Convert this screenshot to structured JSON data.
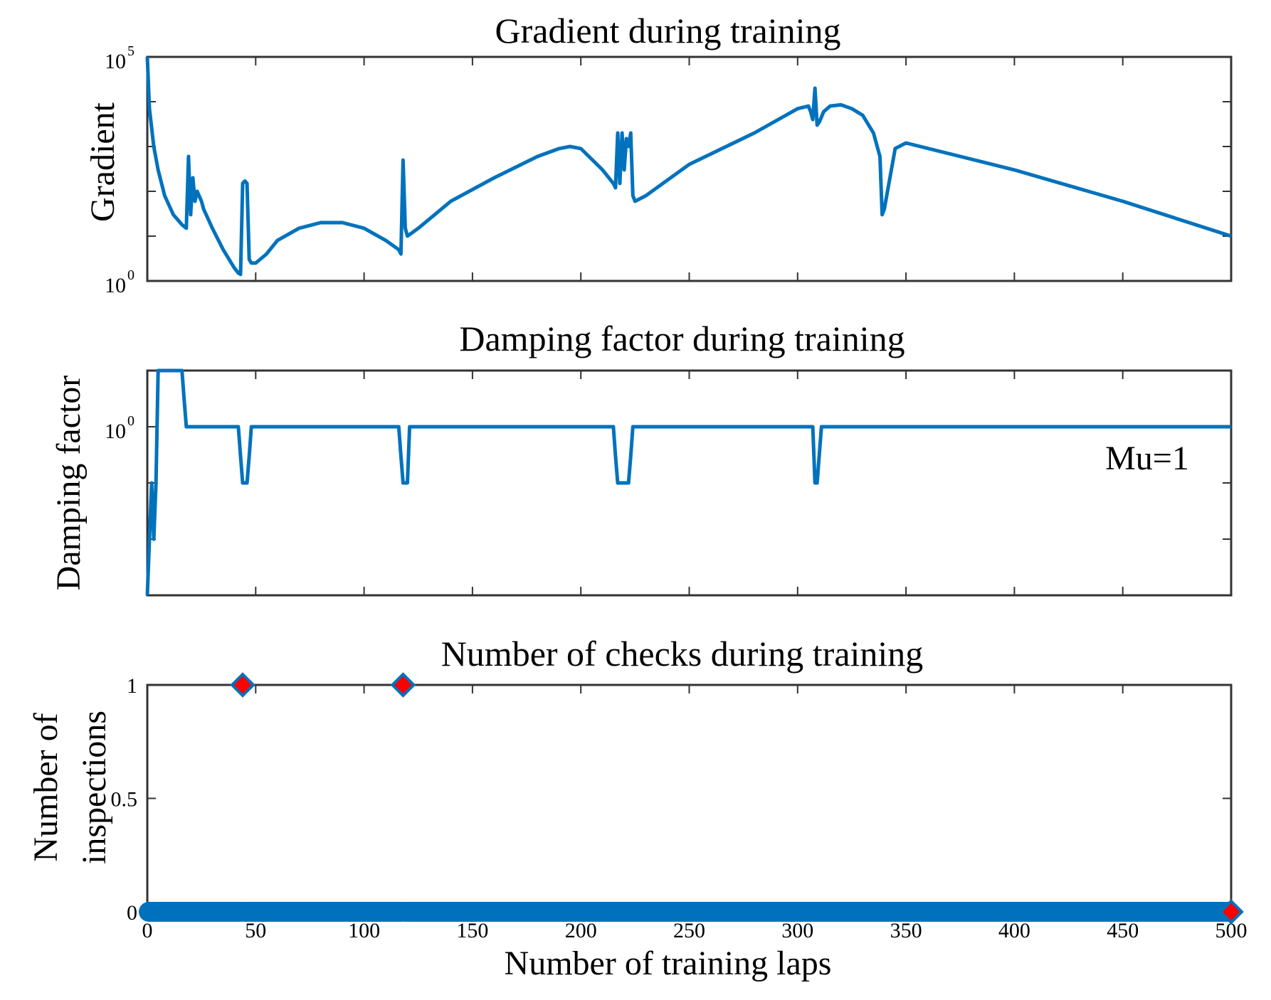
{
  "colors": {
    "line": "#0072BD",
    "marker_fill": "#FF0000",
    "axes": "#333333",
    "background": "#FFFFFF"
  },
  "chart_data": [
    {
      "type": "line",
      "title": "Gradient during training",
      "xlabel": "",
      "ylabel": "Gradient",
      "yscale": "log",
      "xlim": [
        0,
        500
      ],
      "ylim": [
        1,
        100000
      ],
      "yticks": [
        1,
        100000
      ],
      "ytick_labels": [
        {
          "base": "10",
          "exp": "0"
        },
        {
          "base": "10",
          "exp": "5"
        }
      ],
      "xtick_labels_shown": false,
      "grid": false,
      "series": [
        {
          "name": "",
          "x": [
            0,
            1,
            3,
            5,
            8,
            12,
            16,
            18,
            19,
            20,
            21,
            22,
            23,
            25,
            26,
            30,
            35,
            40,
            42,
            43,
            44,
            45,
            46,
            47,
            48,
            50,
            55,
            60,
            70,
            80,
            90,
            100,
            110,
            116,
            117,
            118,
            119,
            120,
            125,
            140,
            160,
            180,
            190,
            195,
            200,
            210,
            215,
            216,
            217,
            218,
            219,
            220,
            221,
            222,
            223,
            224,
            225,
            230,
            250,
            280,
            300,
            305,
            306,
            307,
            308,
            309,
            310,
            312,
            315,
            320,
            325,
            330,
            335,
            338,
            339,
            340,
            345,
            350,
            400,
            450,
            500
          ],
          "y": [
            100000,
            7000,
            1000,
            300,
            80,
            30,
            18,
            15,
            600,
            30,
            200,
            60,
            100,
            60,
            40,
            15,
            5,
            2,
            1.5,
            1.4,
            150,
            170,
            150,
            3,
            2.5,
            2.5,
            4,
            8,
            15,
            20,
            20,
            15,
            8,
            5,
            4,
            500,
            15,
            10,
            15,
            60,
            200,
            600,
            900,
            1000,
            900,
            300,
            150,
            120,
            2000,
            150,
            2000,
            300,
            1500,
            1000,
            2000,
            80,
            60,
            80,
            400,
            2000,
            7000,
            8000,
            6000,
            4000,
            20000,
            3000,
            3500,
            6000,
            8000,
            8500,
            7000,
            5000,
            2000,
            600,
            30,
            40,
            900,
            1200,
            300,
            60,
            10
          ]
        }
      ]
    },
    {
      "type": "line",
      "title": "Damping factor during training",
      "xlabel": "",
      "ylabel": "Damping factor",
      "yscale": "log",
      "xlim": [
        0,
        500
      ],
      "ylim": [
        0.001,
        10
      ],
      "yticks": [
        1
      ],
      "ytick_labels": [
        {
          "base": "10",
          "exp": "0"
        }
      ],
      "xtick_labels_shown": false,
      "grid": false,
      "annotation": "Mu=1",
      "series": [
        {
          "name": "",
          "x": [
            0,
            1,
            2,
            3,
            4,
            5,
            16,
            17,
            18,
            19,
            20,
            42,
            43,
            44,
            46,
            47,
            48,
            116,
            117,
            118,
            120,
            121,
            215,
            216,
            217,
            218,
            222,
            223,
            224,
            307,
            308,
            309,
            311,
            312,
            500
          ],
          "y": [
            0.001,
            0.01,
            0.1,
            0.01,
            0.1,
            10,
            10,
            3,
            1,
            1,
            1,
            1,
            0.3,
            0.1,
            0.1,
            0.3,
            1,
            1,
            0.3,
            0.1,
            0.1,
            1,
            1,
            0.3,
            0.1,
            0.1,
            0.1,
            0.3,
            1,
            1,
            0.1,
            0.1,
            1,
            1,
            1
          ]
        }
      ]
    },
    {
      "type": "scatter",
      "title": "Number of checks during training",
      "xlabel": "Number of training laps",
      "ylabel_lines": [
        "Number of",
        "inspections"
      ],
      "xlim": [
        0,
        500
      ],
      "ylim": [
        0,
        1
      ],
      "xticks": [
        0,
        50,
        100,
        150,
        200,
        250,
        300,
        350,
        400,
        450,
        500
      ],
      "xtick_labels": [
        "0",
        "50",
        "100",
        "150",
        "200",
        "250",
        "300",
        "350",
        "400",
        "450",
        "500"
      ],
      "yticks": [
        0,
        0.5,
        1
      ],
      "ytick_labels": [
        "0",
        "0.5",
        "1"
      ],
      "grid": false,
      "series": [
        {
          "name": "",
          "x_range": [
            0,
            500
          ],
          "y": 0,
          "gaps_at": [
            44,
            118
          ]
        },
        {
          "name": "",
          "x": [
            44,
            118,
            500
          ],
          "y": [
            1,
            1,
            0
          ]
        }
      ]
    }
  ]
}
